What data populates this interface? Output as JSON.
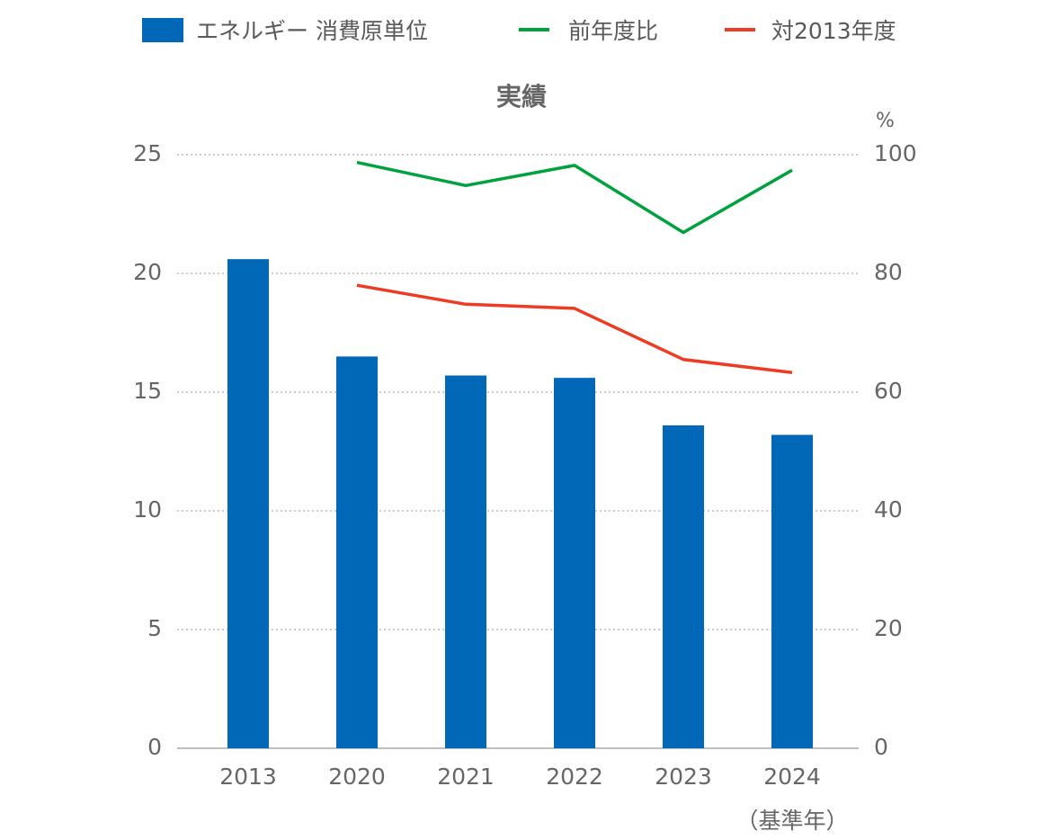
{
  "chart_data": {
    "type": "bar",
    "title": "実績",
    "categories": [
      "2013",
      "2020",
      "2021",
      "2022",
      "2023",
      "2024"
    ],
    "x_annotation": {
      "category": "2024",
      "text": "（基準年）"
    },
    "y_left": {
      "ticks": [
        0,
        5,
        10,
        15,
        20,
        25
      ],
      "ylim": [
        0,
        25
      ]
    },
    "y_right": {
      "unit": "%",
      "ticks": [
        0,
        20,
        40,
        60,
        80,
        100
      ],
      "ylim": [
        0,
        100
      ]
    },
    "series": [
      {
        "name": "エネルギー 消費原単位",
        "type": "bar",
        "axis": "left",
        "color": "#0068b7",
        "values": [
          20.6,
          16.5,
          15.7,
          15.6,
          13.6,
          13.2
        ]
      },
      {
        "name": "前年度比",
        "type": "line",
        "axis": "right",
        "color": "#00a23e",
        "values": [
          null,
          98.7,
          94.8,
          98.2,
          86.9,
          97.4
        ]
      },
      {
        "name": "対2013年度",
        "type": "line",
        "axis": "right",
        "color": "#ee3b24",
        "values": [
          null,
          78.0,
          74.8,
          74.1,
          65.5,
          63.3
        ]
      }
    ],
    "grid": true,
    "legend_position": "top"
  }
}
